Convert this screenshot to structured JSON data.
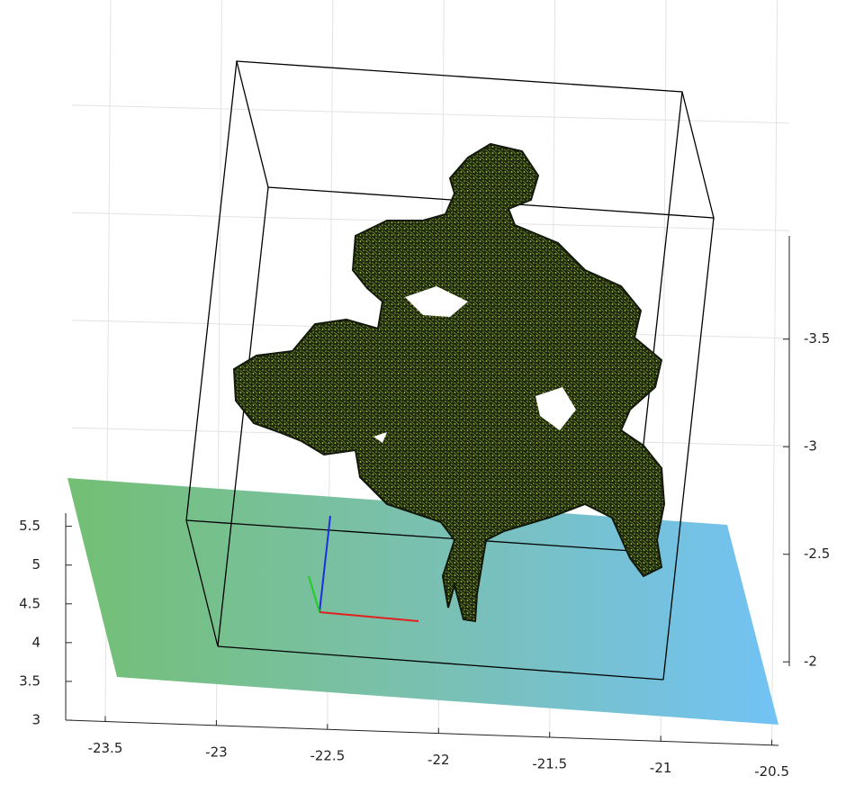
{
  "chart_data": {
    "type": "scatter3d",
    "xlim": [
      -23.67,
      -20.47
    ],
    "xticks": [
      -23.5,
      -23,
      -22.5,
      -22,
      -21.5,
      -21,
      -20.5
    ],
    "ylim": [
      3,
      5.67
    ],
    "yticks": [
      3,
      3.5,
      4,
      4.5,
      5,
      5.5
    ],
    "zlim": [
      -3.98,
      -1.98
    ],
    "zticks": [
      -3.5,
      -3,
      -2.5,
      -2
    ],
    "grid": true
  }
}
